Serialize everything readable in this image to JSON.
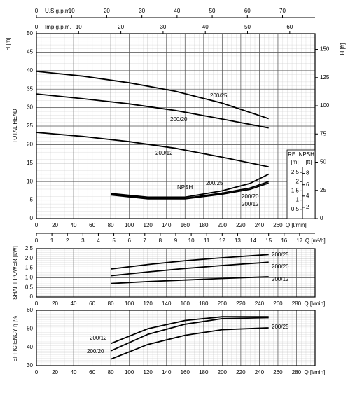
{
  "chart_data": [
    {
      "type": "line",
      "ylabel": "TOTAL HEAD",
      "yunit": "H [m]",
      "xlabel": "Q [l/min]",
      "xlim": [
        0,
        300
      ],
      "xticks": [
        0,
        20,
        40,
        60,
        80,
        100,
        120,
        140,
        160,
        180,
        200,
        220,
        240,
        260
      ],
      "ylim": [
        0,
        50
      ],
      "yticks": [
        0,
        5,
        10,
        15,
        20,
        25,
        30,
        35,
        40,
        45,
        50
      ],
      "grid": true,
      "series": [
        {
          "name": "200/25",
          "color": "#000000",
          "x": [
            0,
            50,
            100,
            150,
            200,
            250
          ],
          "values": [
            39.8,
            38.5,
            36.7,
            34.4,
            31.2,
            27.0
          ]
        },
        {
          "name": "200/20",
          "color": "#000000",
          "x": [
            0,
            50,
            100,
            150,
            200,
            250
          ],
          "values": [
            33.7,
            32.4,
            31.0,
            29.2,
            26.9,
            24.5
          ]
        },
        {
          "name": "200/12",
          "color": "#000000",
          "x": [
            0,
            50,
            100,
            150,
            200,
            250
          ],
          "values": [
            23.3,
            22.2,
            20.8,
            19.0,
            16.6,
            14.0
          ]
        }
      ],
      "npsh": {
        "name": "NPSH",
        "title": "RE. NPSH",
        "unit_m": "[m]",
        "unit_ft": "[ft]",
        "y2lim": [
          0,
          10
        ],
        "y2ticks": [
          0.5,
          1,
          1.5,
          2,
          2.5
        ],
        "ftlim": [
          0,
          32.81
        ],
        "ftticks": [
          2,
          4,
          6,
          8
        ],
        "series": [
          {
            "name": "200/25",
            "color": "#000000",
            "axis": "y2",
            "x": [
              80,
              120,
              160,
              200,
              230,
              250
            ],
            "values": [
              1.36,
              1.16,
              1.16,
              1.5,
              1.9,
              2.4
            ]
          },
          {
            "name": "200/20",
            "color": "#000000",
            "axis": "y2",
            "x": [
              80,
              120,
              160,
              200,
              230,
              250
            ],
            "values": [
              1.32,
              1.1,
              1.1,
              1.38,
              1.65,
              2.0
            ]
          },
          {
            "name": "200/12",
            "color": "#000000",
            "axis": "y2",
            "x": [
              80,
              120,
              160,
              200,
              230,
              250
            ],
            "values": [
              1.28,
              1.07,
              1.07,
              1.32,
              1.58,
              1.92
            ]
          }
        ]
      },
      "us_gpm_axis": {
        "label": "U.S.g.p.m.",
        "xlim": [
          0,
          79.26
        ],
        "xticks": [
          0,
          10,
          20,
          30,
          40,
          50,
          60,
          70
        ]
      },
      "imp_gpm_axis": {
        "label": "Imp.g.p.m.",
        "xlim": [
          0,
          66
        ],
        "xticks": [
          0,
          10,
          20,
          30,
          40,
          50,
          60
        ]
      },
      "m3h_axis": {
        "label": "Q [m³/h]",
        "xlim": [
          0,
          18
        ],
        "xticks": [
          0,
          1,
          2,
          3,
          4,
          5,
          6,
          7,
          8,
          9,
          10,
          11,
          12,
          13,
          14,
          15,
          16,
          17
        ]
      },
      "ft_axis": {
        "label": "H [ft]",
        "ylim": [
          0,
          164
        ],
        "yticks": [
          0,
          25,
          50,
          75,
          100,
          125,
          150
        ]
      }
    },
    {
      "type": "line",
      "ylabel": "SHAFT POWER [kW]",
      "xlabel": "Q [l/min]",
      "xlim": [
        0,
        300
      ],
      "xticks": [
        0,
        20,
        40,
        60,
        80,
        100,
        120,
        140,
        160,
        180,
        200,
        220,
        240,
        260,
        280
      ],
      "ylim": [
        0,
        2.5
      ],
      "yticks": [
        0,
        0.5,
        {
          "value": 1,
          "label": "1.0"
        },
        1.5,
        {
          "value": 2,
          "label": "2.0"
        },
        2.5
      ],
      "grid": true,
      "series": [
        {
          "name": "200/25",
          "color": "#000000",
          "x": [
            80,
            120,
            160,
            200,
            250
          ],
          "values": [
            1.45,
            1.68,
            1.88,
            2.03,
            2.2
          ]
        },
        {
          "name": "200/20",
          "color": "#000000",
          "x": [
            80,
            120,
            160,
            200,
            250
          ],
          "values": [
            1.1,
            1.3,
            1.48,
            1.63,
            1.8
          ]
        },
        {
          "name": "200/12",
          "color": "#000000",
          "x": [
            80,
            120,
            160,
            200,
            250
          ],
          "values": [
            0.7,
            0.8,
            0.88,
            0.96,
            1.05
          ]
        }
      ]
    },
    {
      "type": "line",
      "ylabel": "EFFICIENCY   η [%]",
      "xlabel": "Q [l/min]",
      "xlim": [
        0,
        300
      ],
      "xticks": [
        0,
        20,
        40,
        60,
        80,
        100,
        120,
        140,
        160,
        180,
        200,
        220,
        240,
        260,
        280
      ],
      "ylim": [
        30,
        60
      ],
      "yticks": [
        30,
        40,
        50,
        60
      ],
      "grid": true,
      "series": [
        {
          "name": "200/25",
          "color": "#000000",
          "x": [
            80,
            120,
            160,
            200,
            250
          ],
          "values": [
            33.5,
            41.5,
            46.5,
            49.5,
            50.5
          ]
        },
        {
          "name": "200/20",
          "color": "#000000",
          "x": [
            80,
            120,
            160,
            200,
            250
          ],
          "values": [
            38,
            47,
            52.5,
            55.5,
            56
          ]
        },
        {
          "name": "200/12",
          "color": "#000000",
          "x": [
            80,
            120,
            160,
            200,
            250
          ],
          "values": [
            42,
            50,
            54.5,
            56.5,
            56.5
          ]
        }
      ]
    }
  ]
}
